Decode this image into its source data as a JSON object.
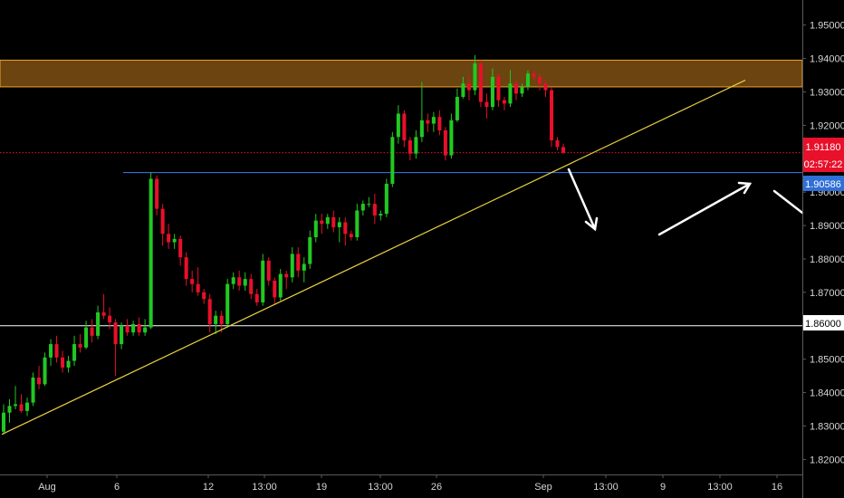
{
  "chart_data": {
    "type": "candlestick",
    "y_axis": {
      "range": [
        1.8155,
        1.9575
      ],
      "ticks": [
        "1.82000",
        "1.83000",
        "1.84000",
        "1.85000",
        "1.86000",
        "1.87000",
        "1.88000",
        "1.89000",
        "1.90000",
        "1.91000",
        "1.92000",
        "1.93000",
        "1.94000",
        "1.95000"
      ]
    },
    "x_axis": {
      "ticks": [
        "Aug",
        "6",
        "12",
        "13:00",
        "19",
        "13:00",
        "26",
        "Sep",
        "13:00",
        "9",
        "13:00",
        "16"
      ]
    },
    "colors": {
      "background": "#000000",
      "bull": "#22c822",
      "bear": "#e8102a",
      "resistance_zone_fill": "#6b4410",
      "resistance_zone_border": "#f0a030",
      "trendline": "#e8d040",
      "level_line": "#2f6fd6",
      "support_line": "#ffffff",
      "price_line": "#e8102a",
      "arrows": "#ffffff"
    },
    "resistance_zone": [
      1.9315,
      1.9395
    ],
    "trendline_start": 1.8275,
    "trendline_end": 1.9335,
    "horizontal_level": 1.90586,
    "support_level": 1.86,
    "current_price": "1.91180",
    "countdown": "02:57:22",
    "level_label": "1.90586",
    "support_label": "1.86000",
    "candles": [
      [
        1.8283,
        1.8365,
        1.8275,
        1.834
      ],
      [
        1.834,
        1.838,
        1.831,
        1.836
      ],
      [
        1.836,
        1.842,
        1.835,
        1.8365
      ],
      [
        1.8365,
        1.8395,
        1.834,
        1.8345
      ],
      [
        1.8345,
        1.8385,
        1.833,
        1.837
      ],
      [
        1.837,
        1.846,
        1.836,
        1.8445
      ],
      [
        1.8445,
        1.848,
        1.841,
        1.8425
      ],
      [
        1.8425,
        1.852,
        1.842,
        1.8505
      ],
      [
        1.8505,
        1.856,
        1.848,
        1.8545
      ],
      [
        1.8545,
        1.857,
        1.849,
        1.8505
      ],
      [
        1.8505,
        1.8525,
        1.846,
        1.8475
      ],
      [
        1.8475,
        1.851,
        1.846,
        1.8495
      ],
      [
        1.8495,
        1.857,
        1.848,
        1.8545
      ],
      [
        1.8545,
        1.8575,
        1.852,
        1.8535
      ],
      [
        1.8535,
        1.8615,
        1.853,
        1.8595
      ],
      [
        1.8595,
        1.862,
        1.855,
        1.857
      ],
      [
        1.857,
        1.866,
        1.856,
        1.864
      ],
      [
        1.864,
        1.8695,
        1.862,
        1.863
      ],
      [
        1.863,
        1.8655,
        1.859,
        1.861
      ],
      [
        1.861,
        1.862,
        1.845,
        1.8545
      ],
      [
        1.8545,
        1.861,
        1.853,
        1.86
      ],
      [
        1.86,
        1.862,
        1.857,
        1.858
      ],
      [
        1.858,
        1.8615,
        1.857,
        1.8605
      ],
      [
        1.8605,
        1.8625,
        1.857,
        1.858
      ],
      [
        1.858,
        1.862,
        1.857,
        1.8595
      ],
      [
        1.8595,
        1.906,
        1.859,
        1.904
      ],
      [
        1.904,
        1.905,
        1.893,
        1.895
      ],
      [
        1.895,
        1.8965,
        1.884,
        1.8875
      ],
      [
        1.8875,
        1.8905,
        1.883,
        1.885
      ],
      [
        1.885,
        1.8875,
        1.883,
        1.886
      ],
      [
        1.886,
        1.887,
        1.878,
        1.8805
      ],
      [
        1.8805,
        1.882,
        1.872,
        1.874
      ],
      [
        1.874,
        1.8765,
        1.87,
        1.8725
      ],
      [
        1.8725,
        1.8775,
        1.869,
        1.87
      ],
      [
        1.87,
        1.871,
        1.8665,
        1.868
      ],
      [
        1.868,
        1.8695,
        1.858,
        1.8605
      ],
      [
        1.8605,
        1.8645,
        1.8575,
        1.863
      ],
      [
        1.863,
        1.8645,
        1.858,
        1.8605
      ],
      [
        1.8605,
        1.874,
        1.8595,
        1.8725
      ],
      [
        1.8725,
        1.876,
        1.871,
        1.8745
      ],
      [
        1.8745,
        1.8765,
        1.8705,
        1.872
      ],
      [
        1.872,
        1.876,
        1.8705,
        1.874
      ],
      [
        1.874,
        1.8755,
        1.868,
        1.8695
      ],
      [
        1.8695,
        1.871,
        1.866,
        1.867
      ],
      [
        1.867,
        1.8815,
        1.866,
        1.8795
      ],
      [
        1.8795,
        1.8805,
        1.872,
        1.8735
      ],
      [
        1.8735,
        1.8745,
        1.8665,
        1.8685
      ],
      [
        1.8685,
        1.877,
        1.8675,
        1.8755
      ],
      [
        1.8755,
        1.8765,
        1.871,
        1.8745
      ],
      [
        1.8745,
        1.8835,
        1.873,
        1.8815
      ],
      [
        1.8815,
        1.8835,
        1.8745,
        1.8765
      ],
      [
        1.8765,
        1.8805,
        1.873,
        1.8785
      ],
      [
        1.8785,
        1.8885,
        1.877,
        1.8865
      ],
      [
        1.8865,
        1.8935,
        1.885,
        1.8915
      ],
      [
        1.8915,
        1.8935,
        1.8875,
        1.8905
      ],
      [
        1.8905,
        1.8935,
        1.889,
        1.8925
      ],
      [
        1.8925,
        1.8945,
        1.888,
        1.8895
      ],
      [
        1.8895,
        1.8925,
        1.885,
        1.891
      ],
      [
        1.891,
        1.8925,
        1.884,
        1.8875
      ],
      [
        1.8875,
        1.8885,
        1.8855,
        1.8865
      ],
      [
        1.8865,
        1.8965,
        1.8855,
        1.8945
      ],
      [
        1.8945,
        1.8975,
        1.893,
        1.8965
      ],
      [
        1.8965,
        1.8985,
        1.8955,
        1.8965
      ],
      [
        1.8965,
        1.8995,
        1.8905,
        1.893
      ],
      [
        1.893,
        1.8945,
        1.8915,
        1.8935
      ],
      [
        1.8935,
        1.904,
        1.8925,
        1.9025
      ],
      [
        1.9025,
        1.918,
        1.9015,
        1.9165
      ],
      [
        1.9165,
        1.926,
        1.9145,
        1.9235
      ],
      [
        1.9235,
        1.9245,
        1.9135,
        1.9155
      ],
      [
        1.9155,
        1.9165,
        1.9095,
        1.9115
      ],
      [
        1.9115,
        1.9185,
        1.91,
        1.9165
      ],
      [
        1.9165,
        1.933,
        1.915,
        1.9215
      ],
      [
        1.9215,
        1.9235,
        1.918,
        1.9205
      ],
      [
        1.9205,
        1.924,
        1.918,
        1.9225
      ],
      [
        1.9225,
        1.9245,
        1.917,
        1.9185
      ],
      [
        1.9185,
        1.9195,
        1.9095,
        1.911
      ],
      [
        1.911,
        1.9235,
        1.91,
        1.9215
      ],
      [
        1.9215,
        1.931,
        1.921,
        1.9285
      ],
      [
        1.9285,
        1.9345,
        1.928,
        1.9325
      ],
      [
        1.9325,
        1.9345,
        1.9275,
        1.9305
      ],
      [
        1.9305,
        1.941,
        1.929,
        1.9385
      ],
      [
        1.9385,
        1.9395,
        1.9255,
        1.927
      ],
      [
        1.927,
        1.9295,
        1.922,
        1.9255
      ],
      [
        1.9255,
        1.937,
        1.9245,
        1.9345
      ],
      [
        1.9345,
        1.9355,
        1.9255,
        1.9275
      ],
      [
        1.9275,
        1.9285,
        1.9245,
        1.9265
      ],
      [
        1.9265,
        1.9365,
        1.9255,
        1.9325
      ],
      [
        1.9325,
        1.9335,
        1.9275,
        1.9295
      ],
      [
        1.9295,
        1.9325,
        1.9285,
        1.9315
      ],
      [
        1.9315,
        1.9365,
        1.9305,
        1.9355
      ],
      [
        1.9355,
        1.9365,
        1.9335,
        1.9345
      ],
      [
        1.9345,
        1.9355,
        1.9305,
        1.9325
      ],
      [
        1.9325,
        1.9335,
        1.9285,
        1.9305
      ],
      [
        1.9305,
        1.9315,
        1.9135,
        1.9155
      ],
      [
        1.9155,
        1.9165,
        1.9125,
        1.9135
      ],
      [
        1.9135,
        1.9145,
        1.9115,
        1.9118
      ]
    ]
  }
}
